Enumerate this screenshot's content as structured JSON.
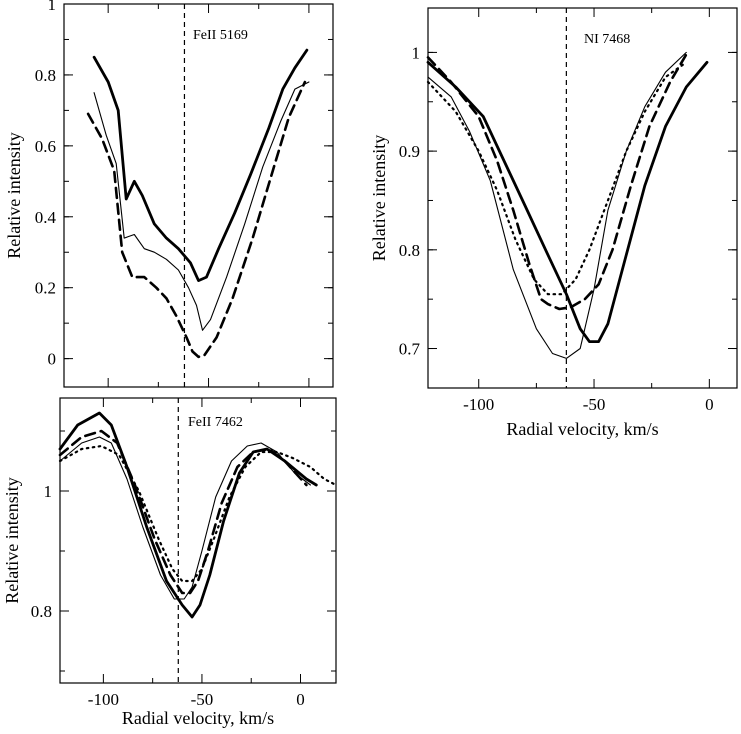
{
  "chart_data": [
    {
      "type": "line",
      "title": "FeII 5169",
      "xlabel": "",
      "ylabel": "Relative intensity",
      "xlim": [
        -122,
        12
      ],
      "ylim": [
        -0.08,
        1.0
      ],
      "xticks": [],
      "yticks": [
        "0",
        "0.2",
        "0.4",
        "0.6",
        "0.8",
        "1"
      ],
      "vline": -62,
      "series": [
        {
          "name": "thick solid",
          "style": "solid-thick",
          "x": [
            -107,
            -100,
            -95,
            -91,
            -87,
            -83,
            -77,
            -71,
            -65,
            -59,
            -55,
            -51,
            -45,
            -37,
            -29,
            -20,
            -13,
            -7,
            -1
          ],
          "y": [
            0.85,
            0.78,
            0.7,
            0.45,
            0.5,
            0.46,
            0.38,
            0.34,
            0.31,
            0.27,
            0.22,
            0.23,
            0.31,
            0.41,
            0.52,
            0.65,
            0.76,
            0.82,
            0.87
          ]
        },
        {
          "name": "thin solid",
          "style": "solid-thin",
          "x": [
            -107,
            -101,
            -96,
            -92,
            -87,
            -82,
            -77,
            -71,
            -65,
            -60,
            -56,
            -53,
            -49,
            -41,
            -32,
            -23,
            -14,
            -7,
            0
          ],
          "y": [
            0.75,
            0.63,
            0.55,
            0.34,
            0.35,
            0.31,
            0.3,
            0.28,
            0.25,
            0.2,
            0.15,
            0.08,
            0.11,
            0.23,
            0.38,
            0.54,
            0.67,
            0.76,
            0.78
          ]
        },
        {
          "name": "dashed",
          "style": "dashed",
          "x": [
            -110,
            -103,
            -97,
            -93,
            -88,
            -82,
            -76,
            -71,
            -66,
            -61,
            -58,
            -55,
            -52,
            -46,
            -38,
            -28,
            -18,
            -10,
            -2
          ],
          "y": [
            0.69,
            0.62,
            0.53,
            0.3,
            0.23,
            0.23,
            0.2,
            0.17,
            0.12,
            0.06,
            0.02,
            0.005,
            0.01,
            0.06,
            0.17,
            0.34,
            0.53,
            0.68,
            0.78
          ]
        }
      ]
    },
    {
      "type": "line",
      "title": "NI 7468",
      "xlabel": "Radial velocity, km/s",
      "ylabel": "Relative intensity",
      "xlim": [
        -122,
        12
      ],
      "ylim": [
        0.66,
        1.045
      ],
      "xticks": [
        "-100",
        "-50",
        "0"
      ],
      "yticks": [
        "0.7",
        "0.8",
        "0.9",
        "1"
      ],
      "vline": -62,
      "series": [
        {
          "name": "thick solid",
          "style": "solid-thick",
          "x": [
            -122,
            -110,
            -98,
            -90,
            -80,
            -70,
            -62,
            -56,
            -52,
            -48,
            -44,
            -36,
            -28,
            -19,
            -10,
            -1
          ],
          "y": [
            0.99,
            0.965,
            0.935,
            0.895,
            0.845,
            0.795,
            0.755,
            0.72,
            0.707,
            0.707,
            0.725,
            0.795,
            0.865,
            0.925,
            0.965,
            0.99
          ]
        },
        {
          "name": "thin solid",
          "style": "solid-thin",
          "x": [
            -122,
            -112,
            -104,
            -95,
            -85,
            -75,
            -68,
            -62,
            -56,
            -50,
            -44,
            -36,
            -28,
            -19,
            -10
          ],
          "y": [
            0.975,
            0.955,
            0.92,
            0.87,
            0.78,
            0.72,
            0.695,
            0.69,
            0.7,
            0.76,
            0.84,
            0.9,
            0.945,
            0.98,
            1.0
          ]
        },
        {
          "name": "dashed",
          "style": "dashed",
          "x": [
            -122,
            -112,
            -100,
            -92,
            -85,
            -78,
            -73,
            -70,
            -65,
            -60,
            -54,
            -48,
            -42,
            -34,
            -26,
            -17,
            -10
          ],
          "y": [
            0.995,
            0.97,
            0.935,
            0.89,
            0.84,
            0.785,
            0.75,
            0.745,
            0.74,
            0.742,
            0.75,
            0.765,
            0.8,
            0.865,
            0.925,
            0.97,
            0.998
          ]
        },
        {
          "name": "dotted",
          "style": "dotted",
          "x": [
            -122,
            -110,
            -100,
            -92,
            -84,
            -76,
            -70,
            -64,
            -58,
            -52,
            -44,
            -36,
            -28,
            -19,
            -10
          ],
          "y": [
            0.97,
            0.94,
            0.9,
            0.86,
            0.81,
            0.77,
            0.755,
            0.755,
            0.77,
            0.8,
            0.85,
            0.9,
            0.94,
            0.975,
            0.99
          ]
        }
      ]
    },
    {
      "type": "line",
      "title": "FeII 7462",
      "xlabel": "Radial velocity, km/s",
      "ylabel": "Relative intensity",
      "xlim": [
        -122,
        18
      ],
      "ylim": [
        0.68,
        1.155
      ],
      "xticks": [
        "-100",
        "-50",
        "0"
      ],
      "yticks": [
        "0.8",
        "1"
      ],
      "vline": -62,
      "series": [
        {
          "name": "thick solid",
          "style": "solid-thick",
          "x": [
            -122,
            -113,
            -102,
            -96,
            -88,
            -78,
            -68,
            -60,
            -55,
            -51,
            -46,
            -39,
            -31,
            -24,
            -17,
            -8,
            3,
            8
          ],
          "y": [
            1.07,
            1.11,
            1.13,
            1.11,
            1.04,
            0.94,
            0.85,
            0.81,
            0.79,
            0.81,
            0.86,
            0.95,
            1.03,
            1.065,
            1.07,
            1.05,
            1.02,
            1.01
          ]
        },
        {
          "name": "thin solid",
          "style": "solid-thin",
          "x": [
            -122,
            -111,
            -102,
            -96,
            -88,
            -80,
            -71,
            -64,
            -59,
            -55,
            -50,
            -43,
            -35,
            -27,
            -20,
            -12,
            -3,
            5
          ],
          "y": [
            1.05,
            1.08,
            1.09,
            1.08,
            1.02,
            0.94,
            0.86,
            0.82,
            0.82,
            0.84,
            0.9,
            0.99,
            1.05,
            1.075,
            1.08,
            1.065,
            1.03,
            1.01
          ]
        },
        {
          "name": "dashed",
          "style": "dashed",
          "x": [
            -122,
            -111,
            -101,
            -93,
            -84,
            -74,
            -66,
            -60,
            -56,
            -52,
            -47,
            -40,
            -32,
            -24,
            -16,
            -8,
            3
          ],
          "y": [
            1.06,
            1.09,
            1.1,
            1.08,
            1.01,
            0.92,
            0.86,
            0.83,
            0.83,
            0.85,
            0.9,
            0.98,
            1.04,
            1.065,
            1.07,
            1.05,
            1.01
          ]
        },
        {
          "name": "dotted",
          "style": "dotted",
          "x": [
            -122,
            -111,
            -101,
            -92,
            -82,
            -72,
            -65,
            -60,
            -55,
            -50,
            -44,
            -36,
            -28,
            -20,
            -12,
            -4,
            5,
            12,
            18
          ],
          "y": [
            1.05,
            1.07,
            1.075,
            1.06,
            1.0,
            0.92,
            0.87,
            0.85,
            0.85,
            0.87,
            0.92,
            0.99,
            1.04,
            1.065,
            1.065,
            1.055,
            1.04,
            1.02,
            1.01
          ]
        }
      ]
    }
  ]
}
